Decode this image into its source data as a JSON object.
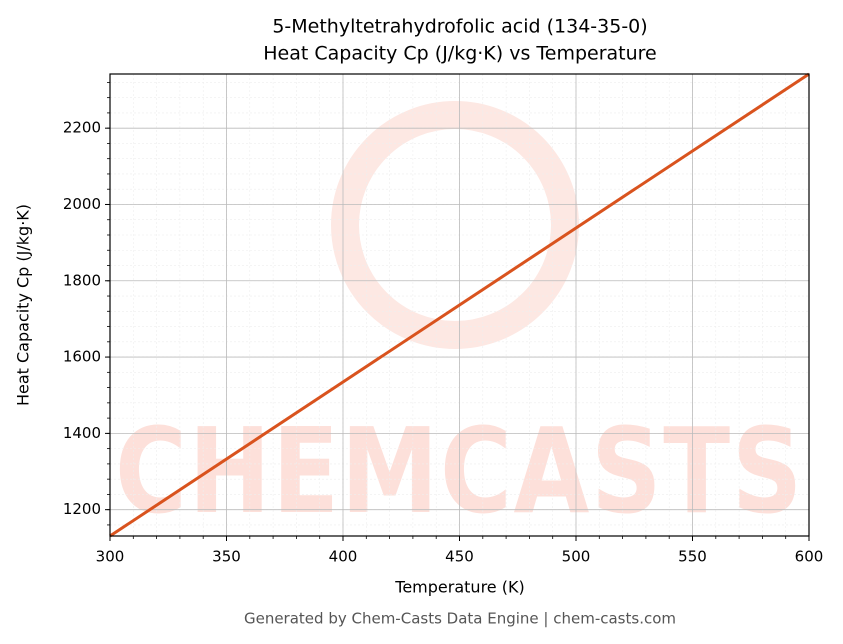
{
  "chart_data": {
    "type": "line",
    "title": "5-Methyltetrahydrofolic acid (134-35-0)",
    "subtitle": "Heat Capacity Cp (J/kg·K) vs Temperature",
    "x_label": "Temperature (K)",
    "y_label": "Heat Capacity Cp (J/kg·K)",
    "footer": "Generated by Chem-Casts Data Engine | chem-casts.com",
    "watermark": "CHEMCASTS",
    "x": [
      300,
      600
    ],
    "series": [
      {
        "name": "Cp",
        "color": "#d9531e",
        "values": [
          1131,
          2342
        ]
      }
    ],
    "xlim": [
      300,
      600
    ],
    "xticks": [
      300,
      350,
      400,
      450,
      500,
      550,
      600
    ],
    "ylim": [
      1131,
      2342
    ],
    "yticks": [
      1200,
      1400,
      1600,
      1800,
      2000,
      2200
    ],
    "grid": true
  }
}
